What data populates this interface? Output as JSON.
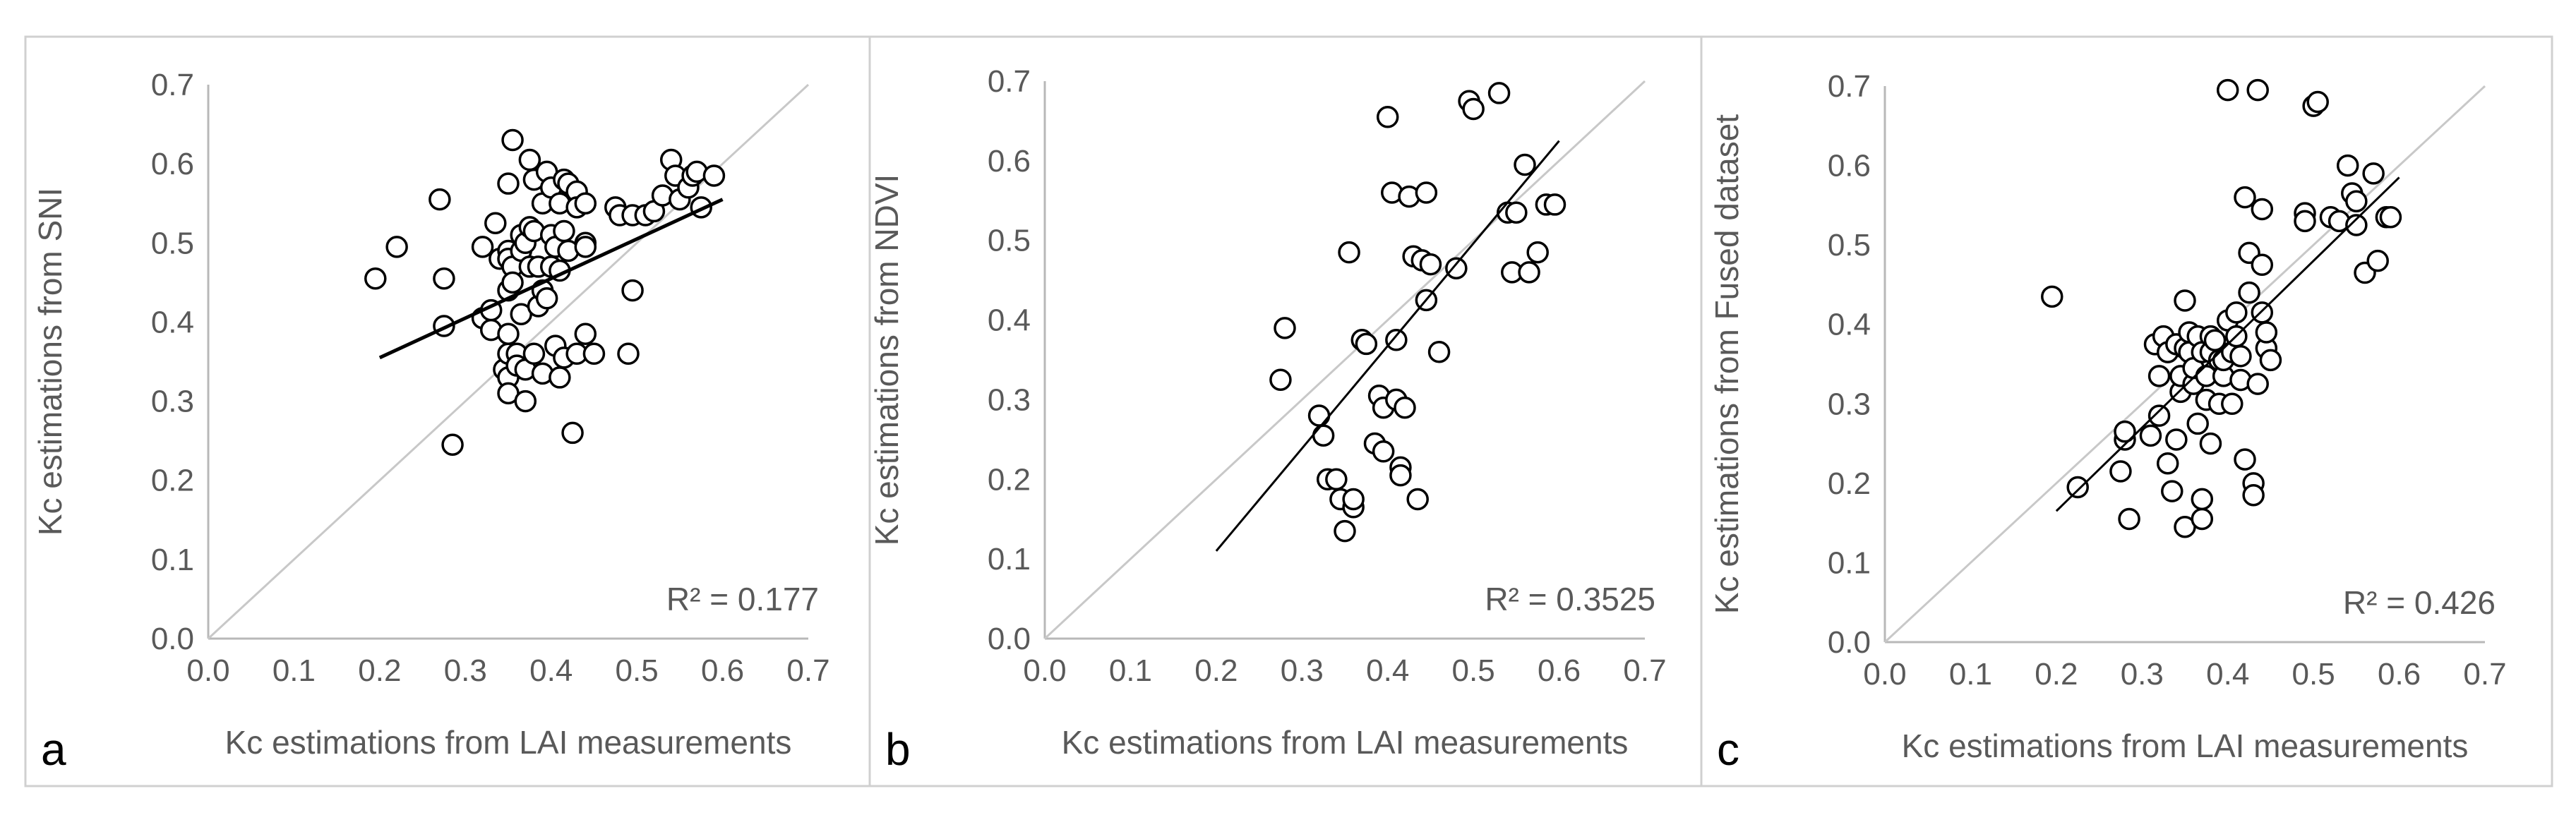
{
  "colors": {
    "panel_border": "#d0d0d0",
    "axis": "#b8b8b8",
    "text": "#595959",
    "marker_stroke": "#000000",
    "marker_fill": "#ffffff",
    "trend": "#000000",
    "identity": "#c8c8c8"
  },
  "chart_data": [
    {
      "type": "scatter",
      "panel_label": "a",
      "xlabel": "Kc estimations from LAI measurements",
      "ylabel": "Kc estimations from SNI",
      "xlim": [
        0,
        0.7
      ],
      "ylim": [
        0,
        0.7
      ],
      "x_ticks": [
        "0.0",
        "0.1",
        "0.2",
        "0.3",
        "0.4",
        "0.5",
        "0.6",
        "0.7"
      ],
      "y_ticks": [
        "0.0",
        "0.1",
        "0.2",
        "0.3",
        "0.4",
        "0.5",
        "0.6",
        "0.7"
      ],
      "r2_label": "R² = 0.177",
      "identity_line": true,
      "trendline": [
        [
          0.2,
          0.355
        ],
        [
          0.6,
          0.555
        ]
      ],
      "points": [
        [
          0.195,
          0.455
        ],
        [
          0.22,
          0.495
        ],
        [
          0.27,
          0.555
        ],
        [
          0.275,
          0.455
        ],
        [
          0.275,
          0.395
        ],
        [
          0.285,
          0.245
        ],
        [
          0.32,
          0.495
        ],
        [
          0.32,
          0.405
        ],
        [
          0.33,
          0.415
        ],
        [
          0.33,
          0.39
        ],
        [
          0.335,
          0.525
        ],
        [
          0.34,
          0.48
        ],
        [
          0.345,
          0.34
        ],
        [
          0.35,
          0.575
        ],
        [
          0.35,
          0.49
        ],
        [
          0.35,
          0.48
        ],
        [
          0.35,
          0.44
        ],
        [
          0.35,
          0.385
        ],
        [
          0.35,
          0.36
        ],
        [
          0.35,
          0.33
        ],
        [
          0.35,
          0.31
        ],
        [
          0.355,
          0.63
        ],
        [
          0.355,
          0.47
        ],
        [
          0.355,
          0.45
        ],
        [
          0.36,
          0.36
        ],
        [
          0.36,
          0.345
        ],
        [
          0.365,
          0.51
        ],
        [
          0.365,
          0.49
        ],
        [
          0.365,
          0.41
        ],
        [
          0.37,
          0.5
        ],
        [
          0.37,
          0.34
        ],
        [
          0.37,
          0.3
        ],
        [
          0.375,
          0.605
        ],
        [
          0.375,
          0.52
        ],
        [
          0.375,
          0.47
        ],
        [
          0.38,
          0.58
        ],
        [
          0.38,
          0.515
        ],
        [
          0.38,
          0.36
        ],
        [
          0.385,
          0.47
        ],
        [
          0.385,
          0.42
        ],
        [
          0.39,
          0.55
        ],
        [
          0.39,
          0.44
        ],
        [
          0.39,
          0.335
        ],
        [
          0.395,
          0.59
        ],
        [
          0.395,
          0.43
        ],
        [
          0.4,
          0.57
        ],
        [
          0.4,
          0.51
        ],
        [
          0.4,
          0.47
        ],
        [
          0.405,
          0.495
        ],
        [
          0.405,
          0.37
        ],
        [
          0.41,
          0.55
        ],
        [
          0.41,
          0.465
        ],
        [
          0.41,
          0.33
        ],
        [
          0.415,
          0.58
        ],
        [
          0.415,
          0.515
        ],
        [
          0.415,
          0.355
        ],
        [
          0.42,
          0.575
        ],
        [
          0.42,
          0.49
        ],
        [
          0.425,
          0.26
        ],
        [
          0.43,
          0.565
        ],
        [
          0.43,
          0.545
        ],
        [
          0.43,
          0.36
        ],
        [
          0.44,
          0.55
        ],
        [
          0.44,
          0.5
        ],
        [
          0.44,
          0.495
        ],
        [
          0.44,
          0.385
        ],
        [
          0.45,
          0.36
        ],
        [
          0.475,
          0.545
        ],
        [
          0.48,
          0.535
        ],
        [
          0.49,
          0.36
        ],
        [
          0.495,
          0.44
        ],
        [
          0.495,
          0.535
        ],
        [
          0.51,
          0.535
        ],
        [
          0.52,
          0.54
        ],
        [
          0.53,
          0.56
        ],
        [
          0.54,
          0.605
        ],
        [
          0.545,
          0.585
        ],
        [
          0.55,
          0.555
        ],
        [
          0.56,
          0.57
        ],
        [
          0.565,
          0.585
        ],
        [
          0.57,
          0.59
        ],
        [
          0.575,
          0.545
        ],
        [
          0.59,
          0.585
        ]
      ]
    },
    {
      "type": "scatter",
      "panel_label": "b",
      "xlabel": "Kc estimations from LAI measurements",
      "ylabel": "Kc estimations from NDVI",
      "xlim": [
        0,
        0.7
      ],
      "ylim": [
        0,
        0.7
      ],
      "x_ticks": [
        "0.0",
        "0.1",
        "0.2",
        "0.3",
        "0.4",
        "0.5",
        "0.6",
        "0.7"
      ],
      "y_ticks": [
        "0.0",
        "0.1",
        "0.2",
        "0.3",
        "0.4",
        "0.5",
        "0.6",
        "0.7"
      ],
      "r2_label": "R² = 0.3525",
      "identity_line": true,
      "trendline": [
        [
          0.2,
          0.11
        ],
        [
          0.6,
          0.625
        ]
      ],
      "points": [
        [
          0.275,
          0.325
        ],
        [
          0.28,
          0.39
        ],
        [
          0.32,
          0.28
        ],
        [
          0.325,
          0.255
        ],
        [
          0.33,
          0.2
        ],
        [
          0.34,
          0.2
        ],
        [
          0.345,
          0.175
        ],
        [
          0.35,
          0.135
        ],
        [
          0.355,
          0.485
        ],
        [
          0.36,
          0.165
        ],
        [
          0.36,
          0.175
        ],
        [
          0.37,
          0.375
        ],
        [
          0.375,
          0.37
        ],
        [
          0.385,
          0.245
        ],
        [
          0.39,
          0.305
        ],
        [
          0.395,
          0.235
        ],
        [
          0.395,
          0.29
        ],
        [
          0.4,
          0.655
        ],
        [
          0.405,
          0.56
        ],
        [
          0.41,
          0.375
        ],
        [
          0.41,
          0.3
        ],
        [
          0.415,
          0.215
        ],
        [
          0.415,
          0.205
        ],
        [
          0.42,
          0.29
        ],
        [
          0.425,
          0.555
        ],
        [
          0.43,
          0.48
        ],
        [
          0.435,
          0.175
        ],
        [
          0.44,
          0.475
        ],
        [
          0.445,
          0.56
        ],
        [
          0.445,
          0.425
        ],
        [
          0.45,
          0.47
        ],
        [
          0.46,
          0.36
        ],
        [
          0.48,
          0.465
        ],
        [
          0.495,
          0.675
        ],
        [
          0.5,
          0.665
        ],
        [
          0.53,
          0.685
        ],
        [
          0.54,
          0.535
        ],
        [
          0.545,
          0.46
        ],
        [
          0.55,
          0.535
        ],
        [
          0.56,
          0.595
        ],
        [
          0.565,
          0.46
        ],
        [
          0.575,
          0.485
        ],
        [
          0.585,
          0.545
        ],
        [
          0.595,
          0.545
        ]
      ]
    },
    {
      "type": "scatter",
      "panel_label": "c",
      "xlabel": "Kc estimations from LAI measurements",
      "ylabel": "Kc estimations from Fused dataset",
      "xlim": [
        0,
        0.7
      ],
      "ylim": [
        0,
        0.7
      ],
      "x_ticks": [
        "0.0",
        "0.1",
        "0.2",
        "0.3",
        "0.4",
        "0.5",
        "0.6",
        "0.7"
      ],
      "y_ticks": [
        "0.0",
        "0.1",
        "0.2",
        "0.3",
        "0.4",
        "0.5",
        "0.6",
        "0.7"
      ],
      "r2_label": "R² = 0.426",
      "identity_line": true,
      "trendline": [
        [
          0.2,
          0.165
        ],
        [
          0.6,
          0.585
        ]
      ],
      "points": [
        [
          0.195,
          0.435
        ],
        [
          0.225,
          0.195
        ],
        [
          0.275,
          0.215
        ],
        [
          0.28,
          0.255
        ],
        [
          0.28,
          0.265
        ],
        [
          0.285,
          0.155
        ],
        [
          0.31,
          0.26
        ],
        [
          0.315,
          0.375
        ],
        [
          0.32,
          0.285
        ],
        [
          0.32,
          0.335
        ],
        [
          0.325,
          0.385
        ],
        [
          0.33,
          0.365
        ],
        [
          0.33,
          0.225
        ],
        [
          0.335,
          0.19
        ],
        [
          0.34,
          0.255
        ],
        [
          0.34,
          0.375
        ],
        [
          0.345,
          0.315
        ],
        [
          0.345,
          0.335
        ],
        [
          0.35,
          0.43
        ],
        [
          0.35,
          0.37
        ],
        [
          0.35,
          0.145
        ],
        [
          0.355,
          0.365
        ],
        [
          0.355,
          0.39
        ],
        [
          0.36,
          0.325
        ],
        [
          0.36,
          0.345
        ],
        [
          0.365,
          0.385
        ],
        [
          0.365,
          0.275
        ],
        [
          0.37,
          0.155
        ],
        [
          0.37,
          0.18
        ],
        [
          0.37,
          0.365
        ],
        [
          0.375,
          0.305
        ],
        [
          0.375,
          0.335
        ],
        [
          0.38,
          0.385
        ],
        [
          0.38,
          0.365
        ],
        [
          0.38,
          0.25
        ],
        [
          0.385,
          0.38
        ],
        [
          0.39,
          0.355
        ],
        [
          0.39,
          0.3
        ],
        [
          0.395,
          0.335
        ],
        [
          0.395,
          0.355
        ],
        [
          0.4,
          0.405
        ],
        [
          0.4,
          0.695
        ],
        [
          0.405,
          0.365
        ],
        [
          0.405,
          0.3
        ],
        [
          0.41,
          0.415
        ],
        [
          0.41,
          0.385
        ],
        [
          0.415,
          0.36
        ],
        [
          0.415,
          0.33
        ],
        [
          0.42,
          0.23
        ],
        [
          0.42,
          0.56
        ],
        [
          0.425,
          0.49
        ],
        [
          0.425,
          0.44
        ],
        [
          0.43,
          0.2
        ],
        [
          0.43,
          0.185
        ],
        [
          0.435,
          0.325
        ],
        [
          0.435,
          0.695
        ],
        [
          0.44,
          0.415
        ],
        [
          0.44,
          0.475
        ],
        [
          0.44,
          0.545
        ],
        [
          0.445,
          0.37
        ],
        [
          0.445,
          0.39
        ],
        [
          0.45,
          0.355
        ],
        [
          0.49,
          0.54
        ],
        [
          0.49,
          0.53
        ],
        [
          0.5,
          0.675
        ],
        [
          0.505,
          0.68
        ],
        [
          0.52,
          0.535
        ],
        [
          0.53,
          0.53
        ],
        [
          0.54,
          0.6
        ],
        [
          0.545,
          0.565
        ],
        [
          0.55,
          0.525
        ],
        [
          0.55,
          0.555
        ],
        [
          0.56,
          0.465
        ],
        [
          0.57,
          0.59
        ],
        [
          0.575,
          0.48
        ],
        [
          0.585,
          0.535
        ],
        [
          0.59,
          0.535
        ]
      ]
    }
  ]
}
